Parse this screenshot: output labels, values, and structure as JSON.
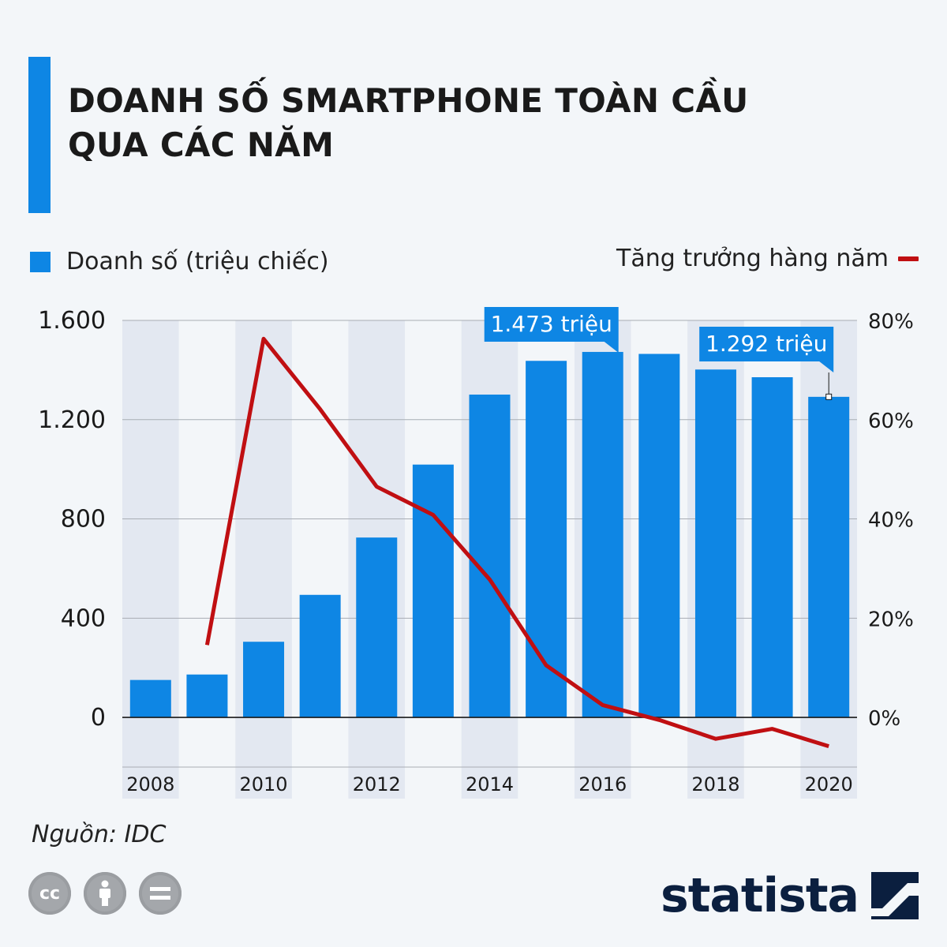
{
  "header": {
    "title_line1": "DOANH SỐ SMARTPHONE TOÀN CẦU",
    "title_line2": "QUA CÁC NĂM"
  },
  "legend": {
    "bars_label": "Doanh số (triệu chiếc)",
    "line_label": "Tăng trưởng hàng năm"
  },
  "colors": {
    "accent": "#0e86e4",
    "bar": "#0e86e4",
    "line": "#c00f12",
    "band": "#e3e8f1",
    "grid": "#a8adb4",
    "axis_text": "#1a1a1a"
  },
  "chart_data": {
    "type": "bar",
    "title": "DOANH SỐ SMARTPHONE TOÀN CẦU QUA CÁC NĂM",
    "categories": [
      "2008",
      "2009",
      "2010",
      "2011",
      "2012",
      "2013",
      "2014",
      "2015",
      "2016",
      "2017",
      "2018",
      "2019",
      "2020"
    ],
    "x_tick_labels": [
      "2008",
      "",
      "2010",
      "",
      "2012",
      "",
      "2014",
      "",
      "2016",
      "",
      "2018",
      "",
      "2020"
    ],
    "series": [
      {
        "name": "Doanh số (triệu chiếc)",
        "type": "bar",
        "axis": "left",
        "values": [
          151,
          173,
          305,
          494,
          725,
          1019,
          1301,
          1437,
          1473,
          1465,
          1402,
          1371,
          1292
        ]
      },
      {
        "name": "Tăng trưởng hàng năm",
        "type": "line",
        "axis": "right",
        "values": [
          null,
          14.6,
          76.3,
          62.1,
          46.5,
          40.8,
          27.8,
          10.5,
          2.5,
          -0.5,
          -4.3,
          -2.3,
          -5.8
        ]
      }
    ],
    "y_left": {
      "min": -200,
      "max": 1600,
      "ticks": [
        0,
        400,
        800,
        1200,
        1600
      ],
      "tick_labels": [
        "0",
        "400",
        "800",
        "1.200",
        "1.600"
      ]
    },
    "y_right": {
      "min": -10,
      "max": 80,
      "ticks": [
        0,
        20,
        40,
        60,
        80
      ],
      "tick_labels": [
        "0%",
        "20%",
        "40%",
        "60%",
        "80%"
      ]
    },
    "annotations": [
      {
        "category": "2016",
        "text": "1.473 triệu"
      },
      {
        "category": "2020",
        "text": "1.292 triệu"
      }
    ],
    "grid": true
  },
  "footer": {
    "source": "Nguồn: IDC",
    "brand": "statista",
    "cc_icons": [
      "cc-icon",
      "by-icon",
      "nd-icon"
    ]
  }
}
